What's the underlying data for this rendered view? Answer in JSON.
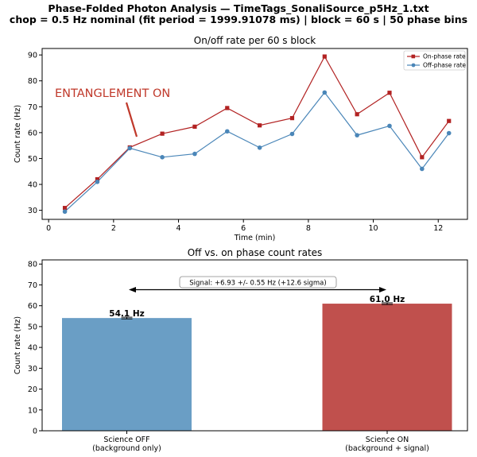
{
  "figure": {
    "title_line1": "Phase-Folded Photon Analysis — TimeTags_SonaliSource_p5Hz_1.txt",
    "title_line2": "chop = 0.5 Hz nominal (fit period = 1999.91078 ms)  |  block = 60 s  |  50 phase bins"
  },
  "chart_data": [
    {
      "type": "line",
      "title": "On/off rate per 60 s block",
      "xlabel": "Time (min)",
      "ylabel": "Count rate (Hz)",
      "xlim": [
        -0.2,
        12.9
      ],
      "ylim": [
        26.5,
        92.5
      ],
      "xticks": [
        0,
        2,
        4,
        6,
        8,
        10,
        12
      ],
      "yticks": [
        30,
        40,
        50,
        60,
        70,
        80,
        90
      ],
      "grid": false,
      "legend_position": "top-right",
      "annotation": "ENTANGLEMENT ON",
      "annotation_color": "#c0392b",
      "x": [
        0.5,
        1.5,
        2.5,
        3.5,
        4.5,
        5.5,
        6.5,
        7.5,
        8.5,
        9.5,
        10.5,
        11.5,
        12.33
      ],
      "series": [
        {
          "name": "On-phase rate",
          "marker": "square",
          "color": "#b22222",
          "values": [
            30.9,
            42.0,
            54.3,
            59.6,
            62.3,
            69.5,
            62.8,
            65.6,
            89.4,
            67.1,
            75.4,
            50.5,
            64.5
          ]
        },
        {
          "name": "Off-phase rate",
          "marker": "circle",
          "color": "#4a86b8",
          "values": [
            29.5,
            41.0,
            54.0,
            50.5,
            51.8,
            60.5,
            54.2,
            59.5,
            75.5,
            59.0,
            62.6,
            46.0,
            59.8
          ]
        }
      ]
    },
    {
      "type": "bar",
      "title": "Off vs. on phase count rates",
      "ylabel": "Count rate (Hz)",
      "ylim": [
        0,
        82
      ],
      "yticks": [
        0,
        10,
        20,
        30,
        40,
        50,
        60,
        70,
        80
      ],
      "categories": [
        "Science OFF\n(background only)",
        "Science ON\n(background + signal)"
      ],
      "values": [
        54.1,
        61.0
      ],
      "errors": [
        0.4,
        0.4
      ],
      "bar_labels": [
        "54.1 Hz",
        "61.0 Hz"
      ],
      "colors": [
        "#6a9ec5",
        "#c0504d"
      ],
      "annotation": "Signal: +6.93 +/- 0.55 Hz  (+12.6 sigma)",
      "annotation_y": 68.5
    }
  ]
}
